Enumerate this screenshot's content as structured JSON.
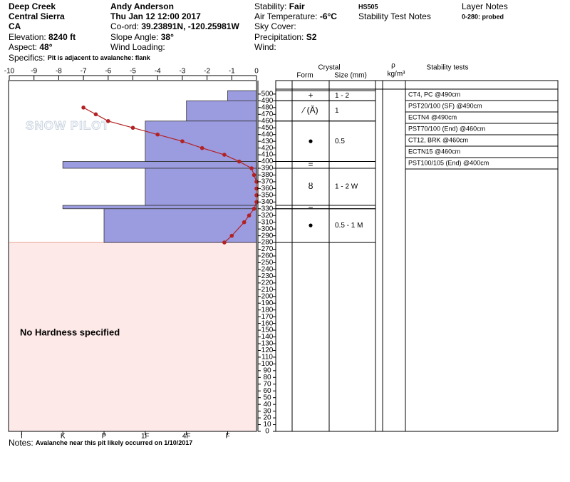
{
  "header": {
    "location": "Deep Creek",
    "range": "Central Sierra",
    "state": "CA",
    "elevation": {
      "label": "Elevation:",
      "value": "8240 ft"
    },
    "aspect": {
      "label": "Aspect:",
      "value": "48°"
    },
    "specifics": {
      "label": "Specifics:",
      "value": "Pit is adjacent to avalanche: flank"
    },
    "observer": "Andy Anderson",
    "datetime": "Thu Jan 12 12:00 2017",
    "coord": {
      "label": "Co-ord:",
      "value": "39.23891N, -120.25981W"
    },
    "slope": {
      "label": "Slope Angle:",
      "value": "38°"
    },
    "wind_loading": "Wind Loading:",
    "stability": {
      "label": "Stability:",
      "value": "Fair"
    },
    "air_temp": {
      "label": "Air Temperature:",
      "value": "-6°C"
    },
    "sky_cover": "Sky Cover:",
    "precipitation": {
      "label": "Precipitation:",
      "value": "S2"
    },
    "wind": "Wind:",
    "hs": "HS505",
    "stability_test_notes": "Stability Test Notes",
    "layer_notes": "Layer Notes",
    "layer_note": "0-280: probed"
  },
  "notes": {
    "label": "Notes:",
    "value": "Avalanche near this pit likely occurred on 1/10/2017"
  },
  "chart_data": {
    "type": "snow-profile",
    "logo": "SNOW PILOT",
    "no_hardness_label": "No Hardness specified",
    "ylim": [
      0,
      520
    ],
    "yticks": [
      0,
      10,
      20,
      30,
      40,
      50,
      60,
      70,
      80,
      90,
      100,
      110,
      120,
      130,
      140,
      150,
      160,
      170,
      180,
      190,
      200,
      210,
      220,
      230,
      240,
      250,
      260,
      270,
      280,
      290,
      300,
      310,
      320,
      330,
      340,
      350,
      360,
      370,
      380,
      390,
      400,
      410,
      420,
      430,
      440,
      450,
      460,
      470,
      480,
      490,
      500
    ],
    "temperature": {
      "xlim": [
        -10,
        0
      ],
      "xticks": [
        -10,
        -9,
        -8,
        -7,
        -6,
        -5,
        -4,
        -3,
        -2,
        -1,
        0
      ],
      "color": "#b22222",
      "x": [
        -7,
        -6.5,
        -6,
        -5,
        -4,
        -3,
        -2.2,
        -1.3,
        -0.7,
        -0.2,
        -0.1,
        0,
        0,
        0,
        0,
        -0.1,
        -0.3,
        -0.5,
        -1,
        -1.3
      ],
      "y": [
        480,
        470,
        460,
        450,
        440,
        430,
        420,
        410,
        400,
        390,
        380,
        370,
        360,
        350,
        340,
        330,
        320,
        310,
        290,
        280
      ]
    },
    "hardness": {
      "xlim": [
        0.3,
        6.3
      ],
      "xticks": [
        {
          "value": 6,
          "label": "I"
        },
        {
          "value": 5,
          "label": "K"
        },
        {
          "value": 4,
          "label": "P"
        },
        {
          "value": 3,
          "label": "1F"
        },
        {
          "value": 2,
          "label": "4F"
        },
        {
          "value": 1,
          "label": "F"
        }
      ],
      "color": "#9b9be0"
    },
    "layers": [
      {
        "top": 505,
        "bottom": 490,
        "hardness": 1,
        "form": "+",
        "size": "1 - 2"
      },
      {
        "top": 490,
        "bottom": 460,
        "hardness": 2,
        "form": "⁄ (Ӑ)",
        "size": "1"
      },
      {
        "top": 460,
        "bottom": 400,
        "hardness": 3,
        "form": "●",
        "size": "0.5"
      },
      {
        "top": 400,
        "bottom": 390,
        "hardness": 5,
        "form": "="
      },
      {
        "top": 390,
        "bottom": 335,
        "hardness": 3,
        "form": "ȣ",
        "size": "1 - 2 W"
      },
      {
        "top": 335,
        "bottom": 330,
        "hardness": 5,
        "form": "="
      },
      {
        "top": 330,
        "bottom": 280,
        "hardness": 4,
        "form": "●",
        "size": "0.5 - 1 M"
      }
    ],
    "crystal_header": "Crystal",
    "form_header": "Form",
    "size_header": "Size (mm)",
    "density_header": "ρ",
    "density_unit": "kg/m³",
    "stability_header": "Stability tests",
    "stability_tests": [
      "CT4, PC @490cm",
      "PST20/100 (SF) @490cm",
      "ECTN4 @490cm",
      "PST70/100 (End) @460cm",
      "CT12, BRK @460cm",
      "ECTN15 @460cm",
      "PST100/105 (End) @400cm"
    ]
  }
}
